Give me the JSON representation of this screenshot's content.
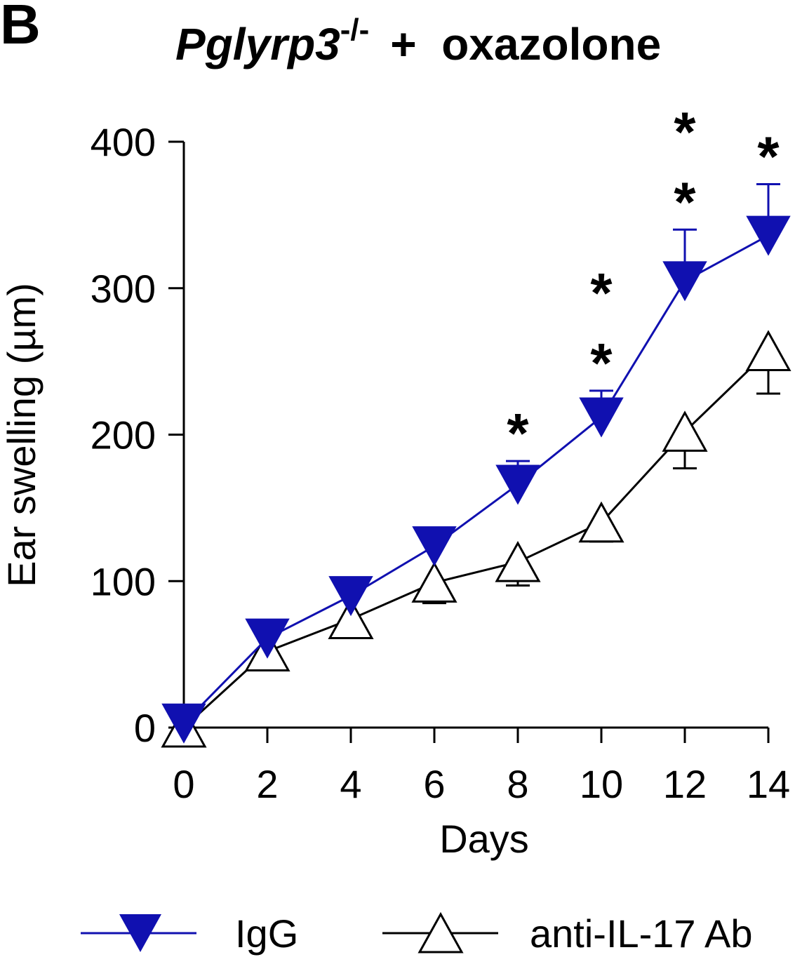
{
  "panel_label": "B",
  "title": {
    "gene": "Pglyrp3",
    "superscript": "-/-",
    "rest": "+  oxazolone"
  },
  "chart_data": {
    "type": "line",
    "xlabel": "Days",
    "ylabel": "Ear swelling (µm)",
    "x": [
      0,
      2,
      4,
      6,
      8,
      10,
      12,
      14
    ],
    "xticks": [
      0,
      2,
      4,
      6,
      8,
      10,
      12,
      14
    ],
    "yticks": [
      0,
      100,
      200,
      300,
      400
    ],
    "xlim": [
      0,
      14
    ],
    "ylim": [
      0,
      400
    ],
    "grid": false,
    "legend_placement": "bottom",
    "series": [
      {
        "name": "IgG",
        "color": "#1010b0",
        "marker": "filled-down-triangle",
        "values": [
          3,
          61,
          90,
          124,
          166,
          212,
          305,
          336
        ],
        "error_upper": [
          3,
          61,
          90,
          136,
          182,
          230,
          340,
          371
        ]
      },
      {
        "name": "anti-IL-17 Ab",
        "color": "#000000",
        "marker": "open-up-triangle",
        "values": [
          0,
          52,
          74,
          99,
          113,
          140,
          202,
          257
        ],
        "error_lower": [
          0,
          52,
          74,
          85,
          97,
          127,
          177,
          228
        ]
      }
    ],
    "annotations": [
      {
        "x": 8,
        "text": "*"
      },
      {
        "x": 10,
        "text": "**"
      },
      {
        "x": 12,
        "text": "**"
      },
      {
        "x": 14,
        "text": "*"
      }
    ]
  }
}
